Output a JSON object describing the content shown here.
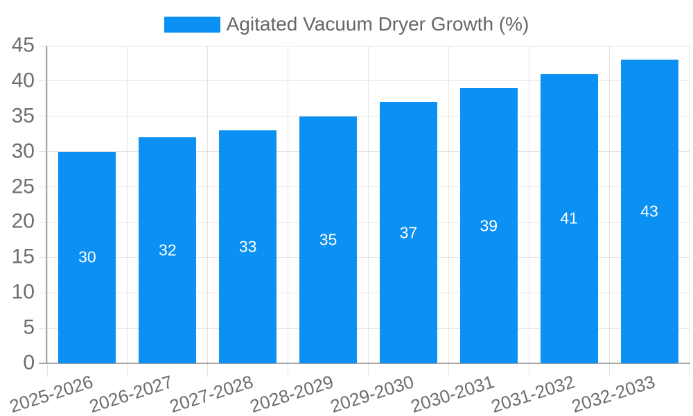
{
  "legend": {
    "label": "Agitated Vacuum Dryer Growth (%)"
  },
  "colors": {
    "bar": "#0b90f3",
    "bar_label": "#ffffff",
    "legend_text": "#666666",
    "axis_text": "#6d6d6d",
    "grid_line": "#e3e3e3",
    "axis_line": "#a6a6a6",
    "background": "#ffffff"
  },
  "chart_data": {
    "type": "bar",
    "categories": [
      "2025-2026",
      "2026-2027",
      "2027-2028",
      "2028-2029",
      "2029-2030",
      "2030-2031",
      "2031-2032",
      "2032-2033"
    ],
    "series": [
      {
        "name": "Agitated Vacuum Dryer Growth (%)",
        "color": "#0b90f3",
        "values": [
          30,
          32,
          33,
          35,
          37,
          39,
          41,
          43
        ]
      }
    ],
    "value_labels": {
      "visible": true,
      "position": "inside-center",
      "color": "#ffffff"
    },
    "xlabel": "",
    "ylabel": "",
    "ylim": [
      0,
      45
    ],
    "ytick_step": 5,
    "yticks": [
      0,
      5,
      10,
      15,
      20,
      25,
      30,
      35,
      40,
      45
    ],
    "grid": true,
    "legend_position": "top-center",
    "x_label_rotation_deg": -17.5
  }
}
